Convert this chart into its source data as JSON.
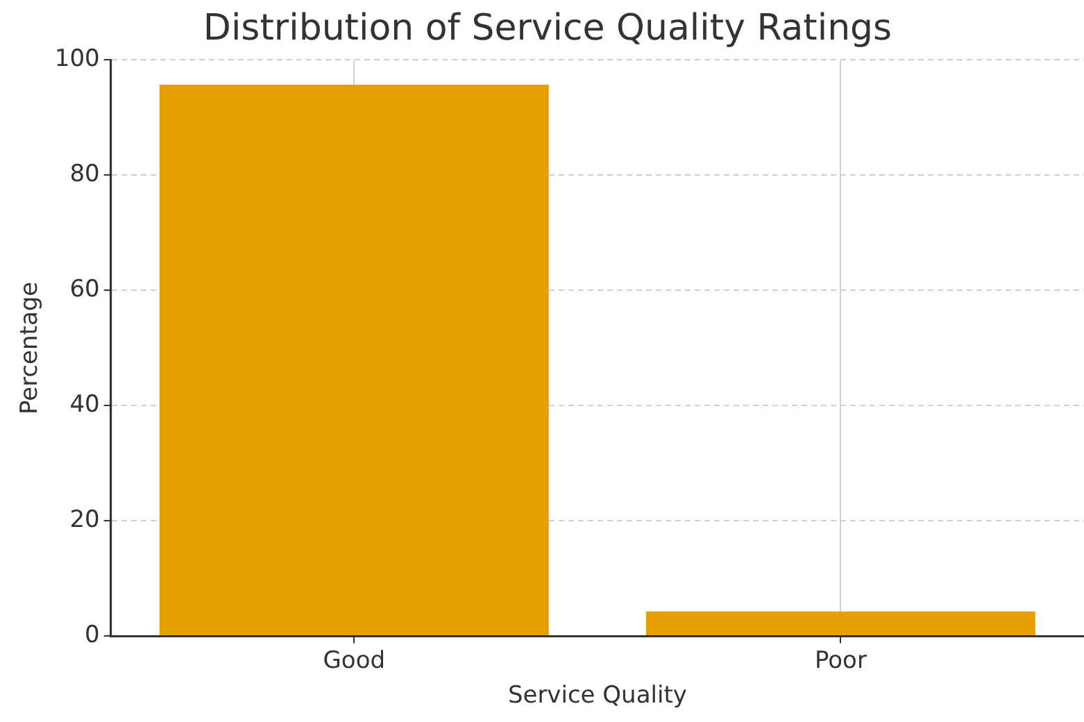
{
  "chart_data": {
    "type": "bar",
    "title": "Distribution of Service Quality Ratings",
    "xlabel": "Service Quality",
    "ylabel": "Percentage",
    "categories": [
      "Good",
      "Poor"
    ],
    "values": [
      95.7,
      4.3
    ],
    "color": "#e5a000",
    "ylim": [
      0,
      100
    ],
    "yticks": [
      0,
      20,
      40,
      60,
      80,
      100
    ],
    "grid": true
  }
}
